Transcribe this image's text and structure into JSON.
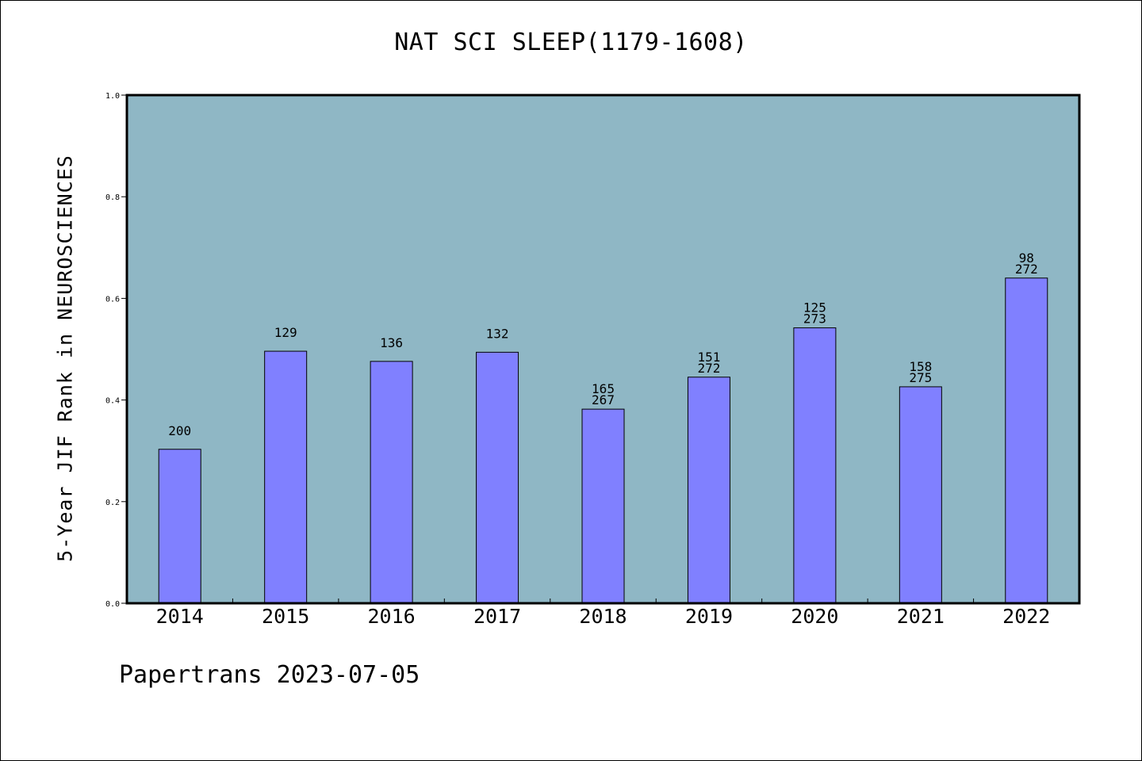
{
  "chart_data": {
    "type": "bar",
    "title": "NAT SCI SLEEP(1179-1608)",
    "xlabel": "",
    "ylabel": "5-Year JIF Rank in NEUROSCIENCES",
    "categories": [
      "2014",
      "2015",
      "2016",
      "2017",
      "2018",
      "2019",
      "2020",
      "2021",
      "2022"
    ],
    "values": [
      0.303,
      0.496,
      0.476,
      0.494,
      0.382,
      0.445,
      0.542,
      0.426,
      0.64
    ],
    "bar_labels": [
      [
        "200"
      ],
      [
        "129"
      ],
      [
        "136"
      ],
      [
        "132"
      ],
      [
        "165",
        "267"
      ],
      [
        "151",
        "272"
      ],
      [
        "125",
        "273"
      ],
      [
        "158",
        "275"
      ],
      [
        "98",
        "272"
      ]
    ],
    "ylim": [
      0.0,
      1.0
    ],
    "yticks": [
      "0.0",
      "0.2",
      "0.4",
      "0.6",
      "0.8",
      "1.0"
    ],
    "grid": false,
    "colors": {
      "plot_background": "#8fb7c5",
      "bar_fill": "#8080ff",
      "bar_edge": "#000000"
    }
  },
  "footer": {
    "text": "Papertrans 2023-07-05"
  }
}
